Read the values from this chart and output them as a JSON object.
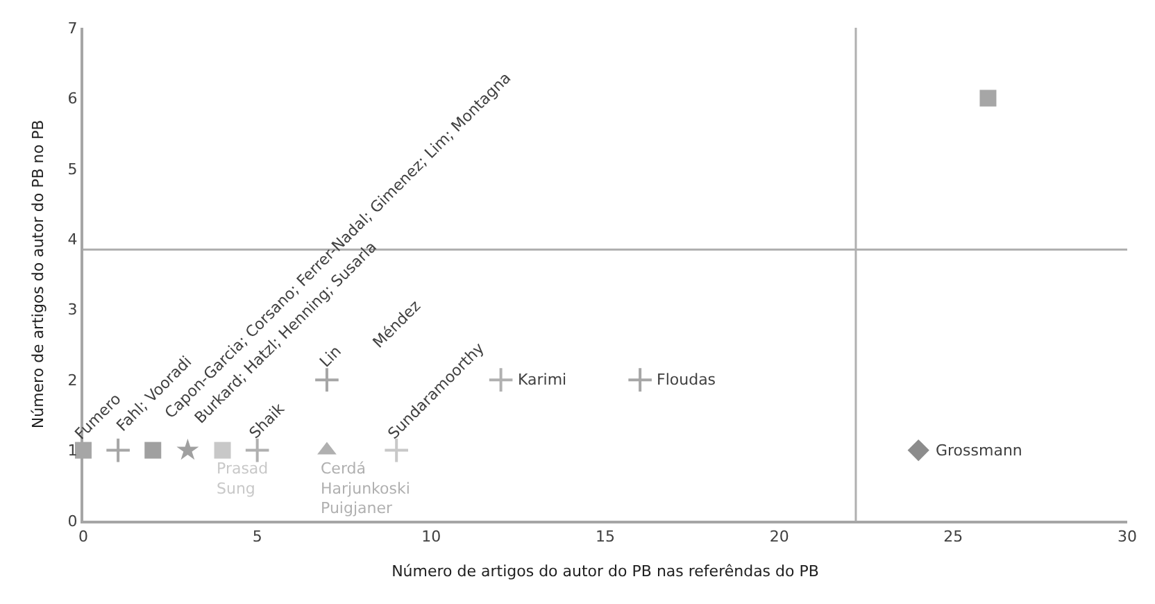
{
  "chart_data": {
    "type": "scatter",
    "xlabel": "Número de artigos do autor do PB nas referêndas do PB",
    "ylabel": "Número de artigos do autor do PB no PB",
    "xlim": [
      0,
      30
    ],
    "xticks": [
      0,
      5,
      10,
      15,
      20,
      25,
      30
    ],
    "ylim": [
      0,
      7
    ],
    "yticks": [
      0,
      1,
      2,
      3,
      4,
      5,
      6,
      7
    ],
    "series": [
      {
        "name": "Fumero",
        "x": [
          0
        ],
        "values": [
          1
        ],
        "marker": "square",
        "color": "#a6a6a6"
      },
      {
        "name": "Fahl; Vooradi",
        "x": [
          1
        ],
        "values": [
          1
        ],
        "marker": "cross",
        "color": "#a6a6a6"
      },
      {
        "name": "Capon-Garcia; Corsano; Ferrer-Nadal; Gimenez; Lim; Montagna",
        "x": [
          2
        ],
        "values": [
          1
        ],
        "marker": "square",
        "color": "#a0a0a0"
      },
      {
        "name": "Burkard; Hatzl; Henning; Susarla",
        "x": [
          3
        ],
        "values": [
          1
        ],
        "marker": "star",
        "color": "#a0a0a0"
      },
      {
        "name": "Prasad\nSung",
        "x": [
          4
        ],
        "values": [
          1
        ],
        "marker": "square",
        "color": "#c8c8c8"
      },
      {
        "name": "Shaik",
        "x": [
          5
        ],
        "values": [
          1
        ],
        "marker": "cross",
        "color": "#b0b0b0"
      },
      {
        "name": "Cerdá\nHarjunkoski\nPuigjaner",
        "x": [
          7
        ],
        "values": [
          1
        ],
        "marker": "triangle",
        "color": "#b0b0b0"
      },
      {
        "name": "Lin",
        "x": [
          7
        ],
        "values": [
          2
        ],
        "marker": "cross",
        "color": "#a6a6a6"
      },
      {
        "name": "Sundaramoorthy",
        "x": [
          9
        ],
        "values": [
          1
        ],
        "marker": "cross",
        "color": "#c8c8c8"
      },
      {
        "name": "Karimi",
        "x": [
          12
        ],
        "values": [
          2
        ],
        "marker": "cross",
        "color": "#b0b0b0"
      },
      {
        "name": "Floudas",
        "x": [
          16
        ],
        "values": [
          2
        ],
        "marker": "cross",
        "color": "#a6a6a6"
      },
      {
        "name": "Grossmann",
        "x": [
          24
        ],
        "values": [
          1
        ],
        "marker": "diamond",
        "color": "#8c8c8c"
      },
      {
        "x": [
          26
        ],
        "values": [
          6
        ],
        "marker": "square",
        "color": "#a6a6a6"
      }
    ],
    "annotations": [
      "Méndez"
    ],
    "ref_lines": [
      {
        "axis": "x",
        "value": 22.2,
        "color": "#b0b0b0"
      },
      {
        "axis": "y",
        "value": 3.85,
        "color": "#b0b0b0"
      }
    ]
  }
}
